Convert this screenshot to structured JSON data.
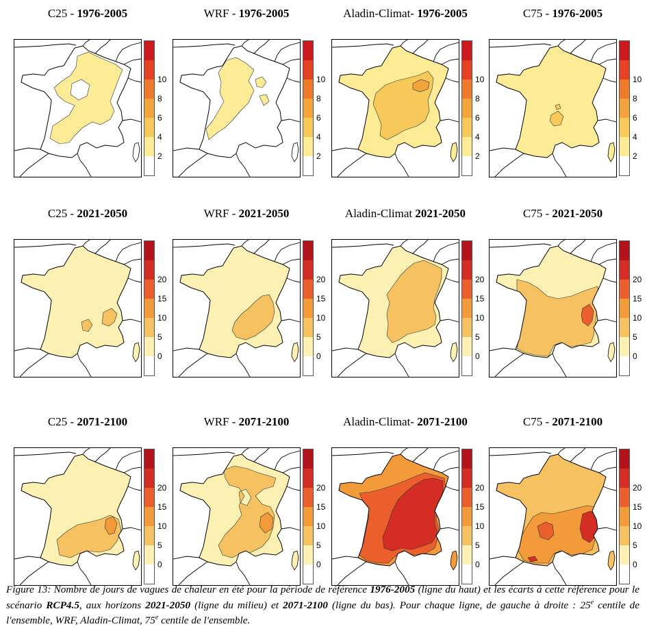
{
  "rows": [
    {
      "period": "1976-2005",
      "legend": {
        "ticks": [
          "2",
          "4",
          "6",
          "8",
          "10"
        ],
        "colors": [
          "#ffffff",
          "#fdeb95",
          "#f7c95a",
          "#f3a43b",
          "#ee7a2c",
          "#e54125",
          "#cd1a1e"
        ]
      },
      "panels": [
        {
          "model": "C25 - ",
          "period": "1976-2005",
          "zones": [
            {
              "level": 0,
              "base": true
            },
            {
              "level": 1,
              "shape": "c25_ref"
            }
          ]
        },
        {
          "model": "WRF - ",
          "period": "1976-2005",
          "zones": [
            {
              "level": 0,
              "base": true
            },
            {
              "level": 1,
              "shape": "wrf_ref"
            }
          ]
        },
        {
          "model": "Aladin-Climat- ",
          "period": "1976-2005",
          "zones": [
            {
              "level": 1,
              "base": true
            },
            {
              "level": 2,
              "shape": "ala_ref_inner"
            },
            {
              "level": 3,
              "shape": "ala_ref_spot"
            }
          ]
        },
        {
          "model": "C75 - ",
          "period": "1976-2005",
          "zones": [
            {
              "level": 1,
              "base": true
            },
            {
              "level": 2,
              "shape": "c75_ref_spot"
            }
          ]
        }
      ]
    },
    {
      "period": "2021-2050",
      "legend": {
        "ticks": [
          "0",
          "5",
          "10",
          "15",
          "20"
        ],
        "colors": [
          "#ffffff",
          "#fdf0b3",
          "#f6c160",
          "#f39a3a",
          "#ea5f2c",
          "#d42d24",
          "#b3141c"
        ]
      },
      "panels": [
        {
          "model": "C25 - ",
          "period": "2021-2050",
          "zones": [
            {
              "level": 1,
              "base": true
            },
            {
              "level": 2,
              "shape": "c25_mid_a"
            },
            {
              "level": 2,
              "shape": "c25_mid_b"
            }
          ]
        },
        {
          "model": "WRF - ",
          "period": "2021-2050",
          "zones": [
            {
              "level": 1,
              "base": true
            },
            {
              "level": 2,
              "shape": "wrf_mid"
            }
          ]
        },
        {
          "model": "Aladin-Climat ",
          "period": "2021-2050",
          "zones": [
            {
              "level": 1,
              "base": true
            },
            {
              "level": 2,
              "shape": "ala_mid"
            }
          ]
        },
        {
          "model": "C75 - ",
          "period": "2021-2050",
          "zones": [
            {
              "level": 1,
              "base": true
            },
            {
              "level": 2,
              "shape": "c75_mid"
            },
            {
              "level": 4,
              "shape": "c75_mid_alps"
            }
          ]
        }
      ]
    },
    {
      "period": "2071-2100",
      "legend": {
        "ticks": [
          "0",
          "5",
          "10",
          "15",
          "20"
        ],
        "colors": [
          "#ffffff",
          "#fdf0b3",
          "#f6c160",
          "#f39a3a",
          "#ea5f2c",
          "#d42d24",
          "#b3141c"
        ]
      },
      "panels": [
        {
          "model": "C25 - ",
          "period": "2071-2100",
          "zones": [
            {
              "level": 1,
              "base": true
            },
            {
              "level": 2,
              "shape": "c25_end"
            },
            {
              "level": 3,
              "shape": "c25_end_alps"
            }
          ]
        },
        {
          "model": "WRF - ",
          "period": "2071-2100",
          "zones": [
            {
              "level": 1,
              "base": true
            },
            {
              "level": 2,
              "shape": "wrf_end"
            },
            {
              "level": 3,
              "shape": "wrf_end_alps"
            }
          ]
        },
        {
          "model": "Aladin-Climat- ",
          "period": "2071-2100",
          "zones": [
            {
              "level": 3,
              "base": true
            },
            {
              "level": 4,
              "shape": "ala_end_mid"
            },
            {
              "level": 5,
              "shape": "ala_end_core"
            }
          ]
        },
        {
          "model": "C75 - ",
          "period": "2071-2100",
          "zones": [
            {
              "level": 2,
              "base": true
            },
            {
              "level": 3,
              "shape": "c75_end_mid"
            },
            {
              "level": 4,
              "shape": "c75_end_core"
            },
            {
              "level": 5,
              "shape": "c75_end_alps"
            }
          ]
        }
      ]
    }
  ],
  "caption": {
    "t1": "Figure 13: Nombre de jours de vagues de chaleur en été pour la période de référence ",
    "b1": "1976-2005",
    "t2": " (ligne du haut) et les écarts à cette référence pour le scénario ",
    "b2": "RCP4.5",
    "t3": ", aux horizons ",
    "b3": "2021-2050",
    "t4": " (ligne du milieu) et ",
    "b4": "2071-2100",
    "t5": " (ligne du bas). Pour chaque ligne, de gauche à droite : 25",
    "sup1": "e",
    "t6": " centile de l'ensemble, WRF, Aladin-Climat, 75",
    "sup2": "e",
    "t7": " centile de l'ensemble."
  }
}
